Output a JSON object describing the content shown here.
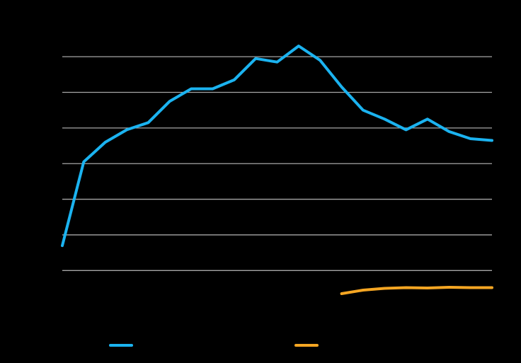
{
  "chart_data": {
    "type": "line",
    "title": "",
    "xlabel": "",
    "ylabel": "",
    "grid": true,
    "legend_position": "bottom",
    "y_gridlines": [
      0,
      1,
      2,
      3,
      4,
      5,
      6
    ],
    "ylim": [
      -0.55,
      6.4
    ],
    "xlim": [
      0,
      20
    ],
    "series": [
      {
        "color": "#1BB3F0",
        "x": [
          0,
          1,
          2,
          3,
          4,
          5,
          6,
          7,
          8,
          9,
          10,
          11,
          12,
          13,
          14,
          15,
          16,
          17,
          18,
          19,
          20
        ],
        "values": [
          0.7,
          3.05,
          3.6,
          3.95,
          4.15,
          4.75,
          5.1,
          5.1,
          5.35,
          5.95,
          5.85,
          6.3,
          5.9,
          5.15,
          4.5,
          4.25,
          3.95,
          4.25,
          3.9,
          3.7,
          3.65
        ],
        "legend_swatch": true
      },
      {
        "color": "#F5A623",
        "x": [
          13,
          14,
          15,
          16,
          17,
          18,
          19,
          20
        ],
        "values": [
          -0.65,
          -0.55,
          -0.5,
          -0.48,
          -0.49,
          -0.47,
          -0.48,
          -0.48
        ],
        "legend_swatch": true
      }
    ]
  }
}
